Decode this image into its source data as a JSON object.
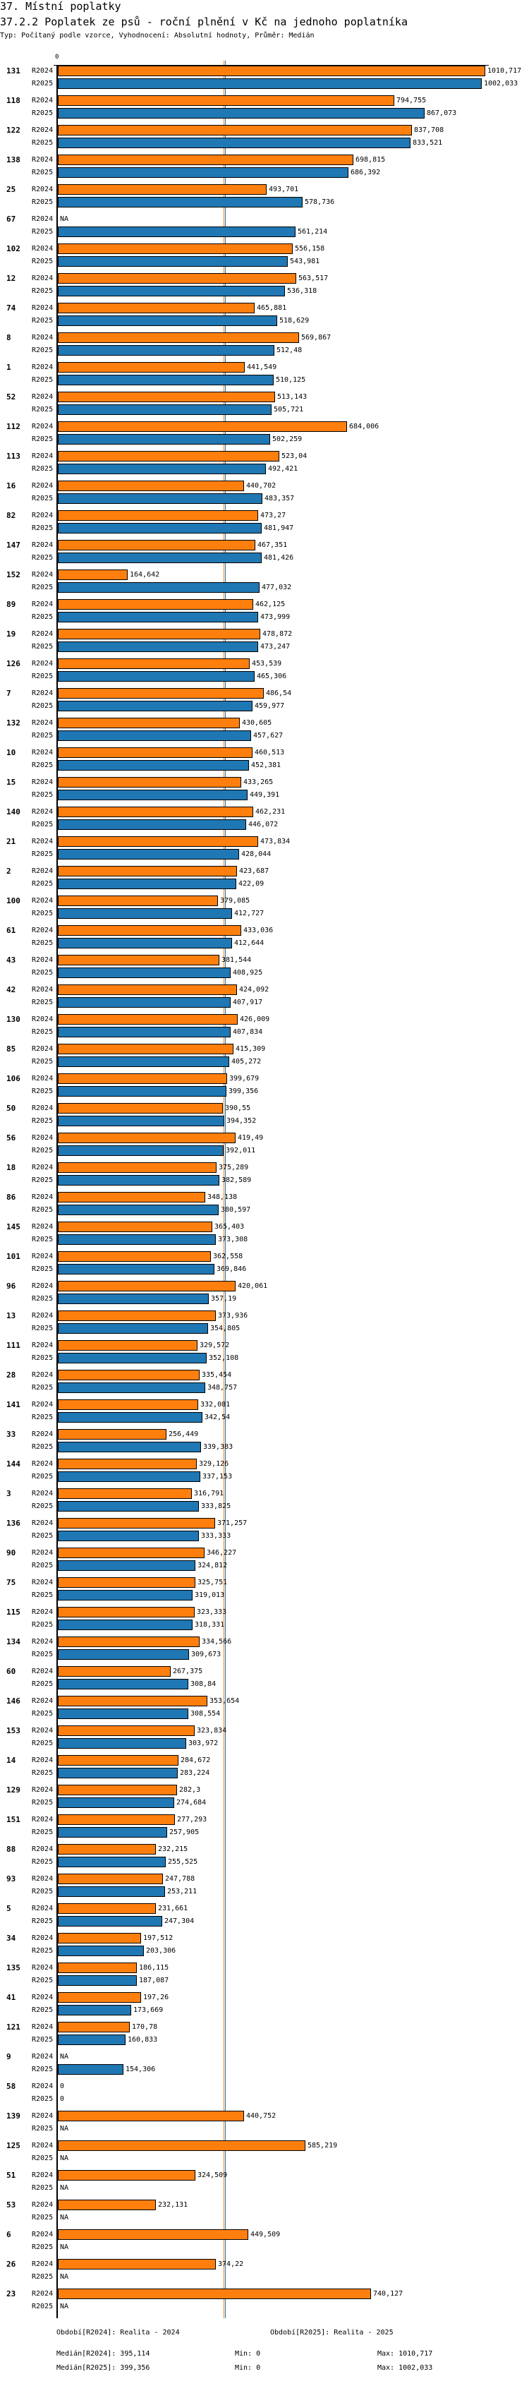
{
  "header": {
    "section": "37. Místní poplatky",
    "title": "37.2.2 Poplatek ze psů - roční plnění v Kč na jednoho poplatníka",
    "subtitle": "Typ: Počítaný podle vzorce, Vyhodnocení: Absolutní hodnoty, Průměr: Medián"
  },
  "chart_data": {
    "type": "bar",
    "orientation": "horizontal",
    "axis_tick": "0",
    "xlim": [
      0,
      1010.717
    ],
    "categories": [
      "131",
      "118",
      "122",
      "138",
      "25",
      "67",
      "102",
      "12",
      "74",
      "8",
      "1",
      "52",
      "112",
      "113",
      "16",
      "82",
      "147",
      "152",
      "89",
      "19",
      "126",
      "7",
      "132",
      "10",
      "15",
      "140",
      "21",
      "2",
      "100",
      "61",
      "43",
      "42",
      "130",
      "85",
      "106",
      "50",
      "56",
      "18",
      "86",
      "145",
      "101",
      "96",
      "13",
      "111",
      "28",
      "141",
      "33",
      "144",
      "3",
      "136",
      "90",
      "75",
      "115",
      "134",
      "60",
      "146",
      "153",
      "14",
      "129",
      "151",
      "88",
      "93",
      "5",
      "34",
      "135",
      "41",
      "121",
      "9",
      "58",
      "139",
      "125",
      "51",
      "53",
      "6",
      "26",
      "23"
    ],
    "na_label": "NA",
    "series": [
      {
        "name": "R2024",
        "color": "#ff7f0e",
        "values": [
          1010.717,
          794.755,
          837.708,
          698.815,
          493.701,
          null,
          556.158,
          563.517,
          465.881,
          569.867,
          441.549,
          513.143,
          684.006,
          523.04,
          440.702,
          473.27,
          467.351,
          164.642,
          462.125,
          478.872,
          453.539,
          486.54,
          430.605,
          460.513,
          433.265,
          462.231,
          473.834,
          423.687,
          379.085,
          433.036,
          381.544,
          424.092,
          426.009,
          415.309,
          399.679,
          390.55,
          419.49,
          375.289,
          348.138,
          365.403,
          362.558,
          420.061,
          373.936,
          329.572,
          335.454,
          332.081,
          256.449,
          329.126,
          316.791,
          371.257,
          346.227,
          325.751,
          323.333,
          334.566,
          267.375,
          353.654,
          323.834,
          284.672,
          282.3,
          277.293,
          232.215,
          247.788,
          231.661,
          197.512,
          186.115,
          197.26,
          170.78,
          null,
          0,
          440.752,
          585.219,
          324.509,
          232.131,
          449.509,
          374.22,
          740.127
        ]
      },
      {
        "name": "R2025",
        "color": "#1f77b4",
        "values": [
          1002.033,
          867.073,
          833.521,
          686.392,
          578.736,
          561.214,
          543.981,
          536.318,
          518.629,
          512.48,
          510.125,
          505.721,
          502.259,
          492.421,
          483.357,
          481.947,
          481.426,
          477.032,
          473.999,
          473.247,
          465.306,
          459.977,
          457.627,
          452.381,
          449.391,
          446.072,
          428.044,
          422.09,
          412.727,
          412.644,
          408.925,
          407.917,
          407.834,
          405.272,
          399.356,
          394.352,
          392.011,
          382.589,
          380.597,
          373.308,
          369.846,
          357.19,
          354.805,
          352.108,
          348.757,
          342.54,
          339.383,
          337.153,
          333.825,
          333.333,
          324.812,
          319.013,
          318.331,
          309.673,
          308.84,
          308.554,
          303.972,
          283.224,
          274.684,
          257.905,
          255.525,
          253.211,
          247.304,
          203.306,
          187.087,
          173.669,
          160.833,
          154.306,
          0,
          null,
          null,
          null,
          null,
          null,
          null,
          null
        ]
      }
    ],
    "medians": [
      395.114,
      399.356
    ]
  },
  "footer": {
    "period_2024": "Období[R2024]: Realita - 2024",
    "period_2025": "Období[R2025]: Realita - 2025",
    "median_2024": "Medián[R2024]: 395,114",
    "median_2025": "Medián[R2025]: 399,356",
    "min_2024": "Min: 0",
    "min_2025": "Min: 0",
    "max_2024": "Max: 1010,717",
    "max_2025": "Max: 1002,033"
  }
}
